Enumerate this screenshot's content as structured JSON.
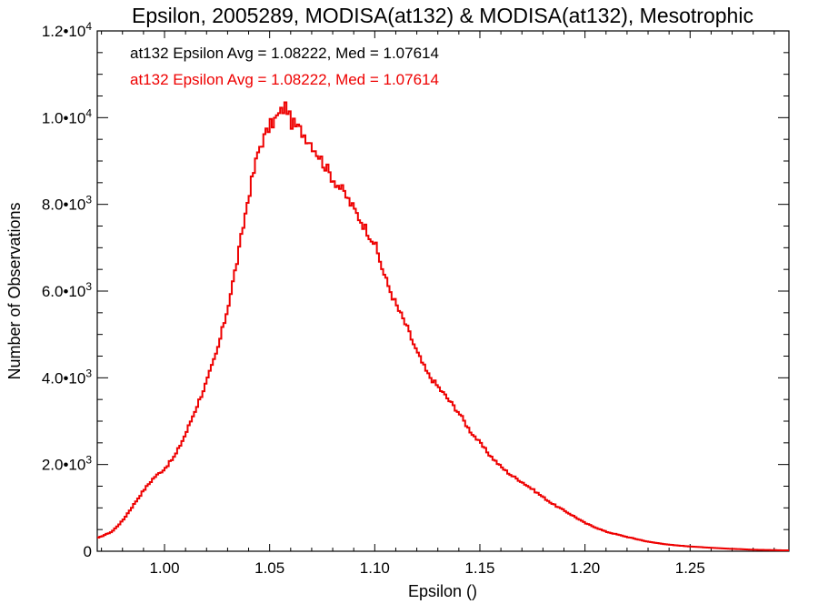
{
  "chart_data": {
    "type": "histogram",
    "title": "Epsilon, 2005289, MODISA(at132) & MODISA(at132), Mesotrophic",
    "xlabel": "Epsilon ()",
    "ylabel": "Number of Observations",
    "xlim": [
      0.968,
      1.297
    ],
    "ylim": [
      0,
      12000
    ],
    "x_ticks": [
      {
        "value": 1.0,
        "label": "1.00"
      },
      {
        "value": 1.05,
        "label": "1.05"
      },
      {
        "value": 1.1,
        "label": "1.10"
      },
      {
        "value": 1.15,
        "label": "1.15"
      },
      {
        "value": 1.2,
        "label": "1.20"
      },
      {
        "value": 1.25,
        "label": "1.25"
      }
    ],
    "y_ticks": [
      {
        "value": 0,
        "mantissa": "0",
        "exponent": ""
      },
      {
        "value": 2000,
        "mantissa": "2.0•10",
        "exponent": "3"
      },
      {
        "value": 4000,
        "mantissa": "4.0•10",
        "exponent": "3"
      },
      {
        "value": 6000,
        "mantissa": "6.0•10",
        "exponent": "3"
      },
      {
        "value": 8000,
        "mantissa": "8.0•10",
        "exponent": "3"
      },
      {
        "value": 10000,
        "mantissa": "1.0•10",
        "exponent": "4"
      },
      {
        "value": 12000,
        "mantissa": "1.2•10",
        "exponent": "4"
      }
    ],
    "grid": false,
    "annotations": [
      {
        "text": "at132 Epsilon Avg = 1.08222, Med = 1.07614",
        "color": "#000000"
      },
      {
        "text": "at132 Epsilon Avg = 1.08222, Med = 1.07614",
        "color": "#ee0000"
      }
    ],
    "series": [
      {
        "color": "#ee0000",
        "x": [
          0.968,
          0.975,
          0.98,
          0.985,
          0.99,
          0.995,
          1.0,
          1.005,
          1.01,
          1.015,
          1.02,
          1.025,
          1.03,
          1.035,
          1.04,
          1.045,
          1.05,
          1.055,
          1.058,
          1.06,
          1.065,
          1.07,
          1.075,
          1.08,
          1.085,
          1.09,
          1.095,
          1.1,
          1.105,
          1.11,
          1.115,
          1.12,
          1.125,
          1.13,
          1.135,
          1.14,
          1.145,
          1.15,
          1.155,
          1.16,
          1.165,
          1.17,
          1.175,
          1.18,
          1.185,
          1.19,
          1.195,
          1.2,
          1.21,
          1.22,
          1.23,
          1.24,
          1.25,
          1.26,
          1.27,
          1.28,
          1.29,
          1.297
        ],
        "values": [
          300,
          450,
          700,
          1050,
          1400,
          1700,
          1900,
          2200,
          2700,
          3300,
          3900,
          4600,
          5600,
          6800,
          8200,
          9300,
          9800,
          10100,
          10300,
          9900,
          9700,
          9400,
          9000,
          8600,
          8300,
          7900,
          7500,
          7100,
          6300,
          5700,
          5200,
          4600,
          4100,
          3800,
          3500,
          3200,
          2800,
          2500,
          2200,
          1950,
          1750,
          1600,
          1430,
          1250,
          1080,
          940,
          800,
          650,
          450,
          330,
          220,
          150,
          110,
          80,
          55,
          35,
          25,
          20
        ]
      }
    ]
  }
}
